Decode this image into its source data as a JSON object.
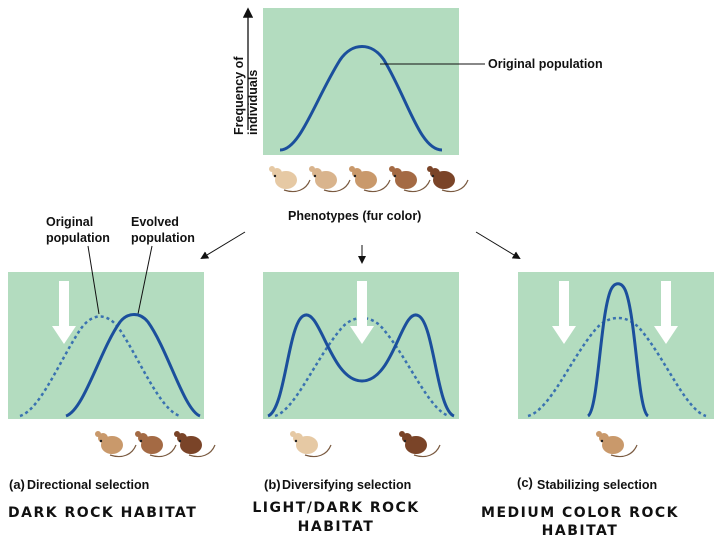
{
  "top": {
    "y_axis_label_line1": "Frequency of",
    "y_axis_label_line2": "individuals",
    "curve_label": "Original population",
    "x_axis_label": "Phenotypes (fur color)"
  },
  "panel_a": {
    "legend_original_line1": "Original",
    "legend_original_line2": "population",
    "legend_evolved_line1": "Evolved",
    "legend_evolved_line2": "population",
    "letter": "(a)",
    "title": "Directional selection",
    "caption_line1": "DARK ROCK HABITAT"
  },
  "panel_b": {
    "letter": "(b)",
    "title": "Diversifying selection",
    "caption_line1": "LIGHT/DARK ROCK",
    "caption_line2": "HABITAT"
  },
  "panel_c": {
    "letter": "(c)",
    "title": "Stabilizing selection",
    "caption_line1": "MEDIUM COLOR ROCK",
    "caption_line2": "HABITAT"
  },
  "colors": {
    "panel_bg": "#b3dcbf",
    "curve": "#1b4f9c",
    "dotted_curve": "#3a72b0",
    "arrow": "#ffffff",
    "mouse_light": "#e6c9a4",
    "mouse_medium": "#c9996b",
    "mouse_dark": "#7a4428"
  }
}
